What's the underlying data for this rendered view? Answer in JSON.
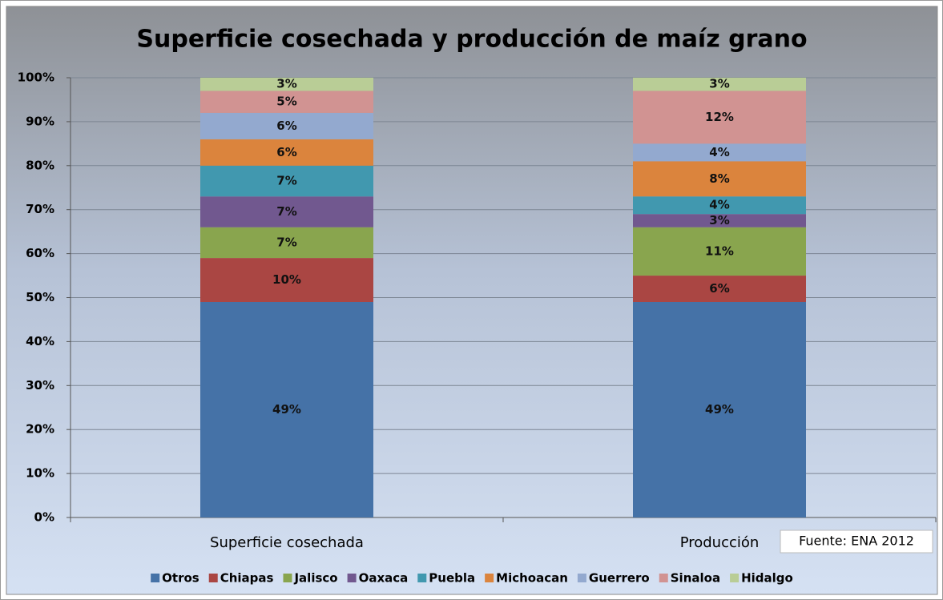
{
  "chart_data": {
    "type": "bar",
    "stacked": true,
    "title": "Superficie cosechada y producción de maíz grano",
    "source": "Fuente: ENA 2012",
    "categories": [
      "Superficie cosechada",
      "Producción"
    ],
    "ylim": [
      0,
      100
    ],
    "yticks": [
      {
        "value": 0,
        "label": "0%"
      },
      {
        "value": 10,
        "label": "10%"
      },
      {
        "value": 20,
        "label": "20%"
      },
      {
        "value": 30,
        "label": "30%"
      },
      {
        "value": 40,
        "label": "40%"
      },
      {
        "value": 50,
        "label": "50%"
      },
      {
        "value": 60,
        "label": "60%"
      },
      {
        "value": 70,
        "label": "70%"
      },
      {
        "value": 80,
        "label": "80%"
      },
      {
        "value": 90,
        "label": "90%"
      },
      {
        "value": 100,
        "label": "100%"
      }
    ],
    "grid": true,
    "legend": "bottom",
    "series": [
      {
        "name": "Otros",
        "color": "#4572a7",
        "values": [
          49,
          49
        ],
        "value_labels": [
          "49%",
          "49%"
        ]
      },
      {
        "name": "Chiapas",
        "color": "#aa4643",
        "values": [
          10,
          6
        ],
        "value_labels": [
          "10%",
          "6%"
        ]
      },
      {
        "name": "Jalisco",
        "color": "#89a54e",
        "values": [
          7,
          11
        ],
        "value_labels": [
          "7%",
          "11%"
        ]
      },
      {
        "name": "Oaxaca",
        "color": "#71588f",
        "values": [
          7,
          3
        ],
        "value_labels": [
          "7%",
          "3%"
        ]
      },
      {
        "name": "Puebla",
        "color": "#4198af",
        "values": [
          7,
          4
        ],
        "value_labels": [
          "7%",
          "4%"
        ]
      },
      {
        "name": "Michoacan",
        "color": "#db843d",
        "values": [
          6,
          8
        ],
        "value_labels": [
          "6%",
          "8%"
        ]
      },
      {
        "name": "Guerrero",
        "color": "#93a9cf",
        "values": [
          6,
          4
        ],
        "value_labels": [
          "6%",
          "4%"
        ]
      },
      {
        "name": "Sinaloa",
        "color": "#d19392",
        "values": [
          5,
          12
        ],
        "value_labels": [
          "5%",
          "12%"
        ]
      },
      {
        "name": "Hidalgo",
        "color": "#b9cd96",
        "values": [
          3,
          3
        ],
        "value_labels": [
          "3%",
          "3%"
        ]
      }
    ]
  }
}
